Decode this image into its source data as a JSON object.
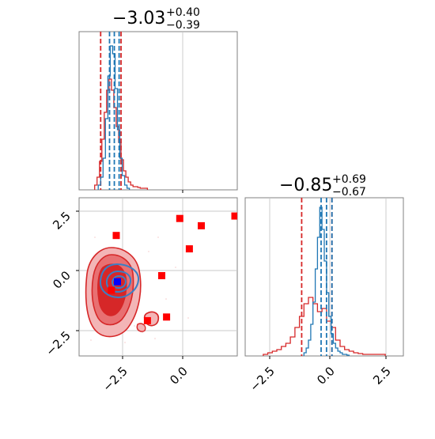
{
  "colors": {
    "series1": "#d62728",
    "series2": "#1f77b4",
    "points": "#ff0000",
    "true_point": "#0000ff"
  },
  "chart_data": {
    "type": "corner",
    "panels": [
      {
        "id": "hist_x",
        "type": "histogram",
        "title": {
          "median": "−3.03",
          "plus": "+0.40",
          "minus": "−0.39"
        },
        "xlim": [
          -4.3,
          2.3
        ],
        "grid": true,
        "series": [
          {
            "color": "#d62728",
            "edges": [
              -3.65,
              -3.55,
              -3.45,
              -3.35,
              -3.25,
              -3.15,
              -3.05,
              -2.95,
              -2.85,
              -2.75,
              -2.65,
              -2.55,
              -2.45,
              -2.35,
              -2.25,
              -2.15,
              -2.05,
              -1.95,
              -1.85,
              -1.75,
              -1.65,
              -1.55,
              -1.45
            ],
            "heights": [
              0.03,
              0.08,
              0.18,
              0.32,
              0.49,
              0.63,
              0.7,
              0.63,
              0.52,
              0.4,
              0.3,
              0.19,
              0.12,
              0.08,
              0.05,
              0.03,
              0.02,
              0.02,
              0.015,
              0.01,
              0.01,
              0.01
            ],
            "quantile_lines": [
              -3.4,
              -2.55
            ]
          },
          {
            "color": "#1f77b4",
            "edges": [
              -3.5,
              -3.4,
              -3.3,
              -3.2,
              -3.1,
              -3.0,
              -2.9,
              -2.8,
              -2.7,
              -2.6,
              -2.5,
              -2.4,
              -2.3,
              -2.2
            ],
            "heights": [
              0.03,
              0.08,
              0.2,
              0.45,
              0.72,
              0.91,
              0.86,
              0.64,
              0.38,
              0.2,
              0.09,
              0.03,
              0.01
            ],
            "quantile_lines": [
              -3.03,
              -2.83,
              -2.63
            ]
          }
        ]
      },
      {
        "id": "scatter_xy",
        "type": "scatter_contour",
        "xlim": [
          -4.3,
          2.3
        ],
        "ylim": [
          -3.5,
          3.0
        ],
        "x_ticks": [
          "−2.5",
          "0.0"
        ],
        "y_ticks": [
          "−2.5",
          "0.0",
          "2.5"
        ],
        "grid": true,
        "points": [
          {
            "x": -2.75,
            "y": 1.45
          },
          {
            "x": -0.1,
            "y": 2.15
          },
          {
            "x": 0.8,
            "y": 1.85
          },
          {
            "x": 2.2,
            "y": 2.25
          },
          {
            "x": 0.3,
            "y": 0.9
          },
          {
            "x": -0.85,
            "y": -0.2
          },
          {
            "x": -2.95,
            "y": -0.8
          },
          {
            "x": -1.45,
            "y": -2.05
          },
          {
            "x": -0.65,
            "y": -1.9
          }
        ],
        "true_point": {
          "x": -2.7,
          "y": -0.45
        }
      },
      {
        "id": "hist_y",
        "type": "histogram",
        "title": {
          "median": "−0.85",
          "plus": "+0.69",
          "minus": "−0.67"
        },
        "xlim": [
          -4.0,
          3.0
        ],
        "x_ticks": [
          "−2.5",
          "0.0",
          "2.5"
        ],
        "grid": true,
        "series": [
          {
            "color": "#d62728",
            "edges": [
              -3.2,
              -3.0,
              -2.8,
              -2.6,
              -2.4,
              -2.2,
              -2.0,
              -1.8,
              -1.6,
              -1.4,
              -1.2,
              -1.0,
              -0.8,
              -0.6,
              -0.4,
              -0.2,
              0.0,
              0.2,
              0.4,
              0.6,
              0.8,
              1.0,
              1.2,
              1.4,
              1.6,
              1.8,
              2.0,
              2.2
            ],
            "heights": [
              0.01,
              0.02,
              0.03,
              0.04,
              0.06,
              0.08,
              0.12,
              0.18,
              0.25,
              0.33,
              0.37,
              0.33,
              0.28,
              0.3,
              0.22,
              0.18,
              0.1,
              0.06,
              0.04,
              0.03,
              0.02,
              0.015,
              0.01,
              0.01,
              0.01,
              0.01,
              0.01
            ],
            "quantile_lines": [
              -1.5,
              -0.16
            ]
          },
          {
            "color": "#1f77b4",
            "edges": [
              -1.4,
              -1.3,
              -1.2,
              -1.1,
              -1.0,
              -0.9,
              -0.8,
              -0.7,
              -0.6,
              -0.5,
              -0.4,
              -0.3,
              -0.2,
              -0.1,
              0.0,
              0.1,
              0.2,
              0.3,
              0.4,
              0.5,
              0.6
            ],
            "heights": [
              0.02,
              0.05,
              0.1,
              0.2,
              0.34,
              0.55,
              0.75,
              0.94,
              0.8,
              0.6,
              0.4,
              0.25,
              0.14,
              0.08,
              0.05,
              0.03,
              0.02,
              0.01,
              0.01,
              0.005
            ],
            "quantile_lines": [
              -0.64,
              -0.4,
              -0.16
            ]
          }
        ]
      }
    ]
  }
}
